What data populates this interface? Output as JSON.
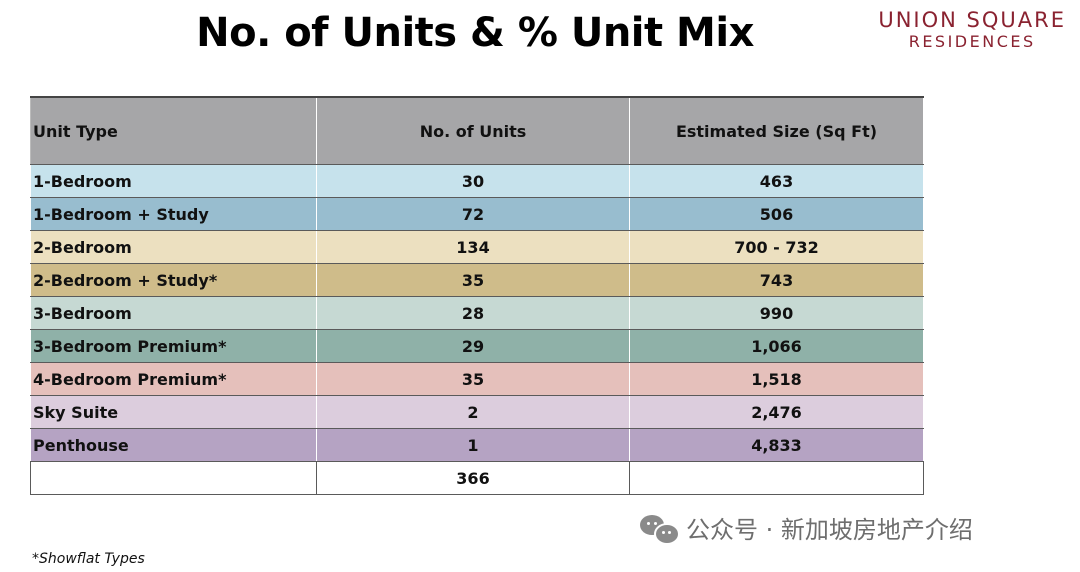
{
  "title": "No. of Units & % Unit Mix",
  "brand": {
    "line1": "UNION SQUARE",
    "line2": "RESIDENCES",
    "color": "#8a2230"
  },
  "table": {
    "headers": [
      "Unit Type",
      "No. of Units",
      "Estimated Size (Sq Ft)"
    ],
    "header_bg": "#a6a6a8",
    "rows": [
      {
        "type": "1-Bedroom",
        "units": "30",
        "size": "463",
        "bg": "#c6e2ec"
      },
      {
        "type": "1-Bedroom +  Study",
        "units": "72",
        "size": "506",
        "bg": "#98bdcf"
      },
      {
        "type": "2-Bedroom",
        "units": "134",
        "size": "700 - 732",
        "bg": "#ece0c0"
      },
      {
        "type": "2-Bedroom + Study*",
        "units": "35",
        "size": "743",
        "bg": "#cfbc8a"
      },
      {
        "type": "3-Bedroom",
        "units": "28",
        "size": "990",
        "bg": "#c6d9d3"
      },
      {
        "type": "3-Bedroom Premium*",
        "units": "29",
        "size": "1,066",
        "bg": "#8fb1a8"
      },
      {
        "type": "4-Bedroom Premium*",
        "units": "35",
        "size": "1,518",
        "bg": "#e5c0bb"
      },
      {
        "type": "Sky Suite",
        "units": "2",
        "size": "2,476",
        "bg": "#dccddd"
      },
      {
        "type": "Penthouse",
        "units": "1",
        "size": "4,833",
        "bg": "#b5a3c3"
      }
    ],
    "total": {
      "type": "",
      "units": "366",
      "size": ""
    }
  },
  "footnote": "*Showflat Types",
  "watermark": "公众号 · 新加坡房地产介绍"
}
